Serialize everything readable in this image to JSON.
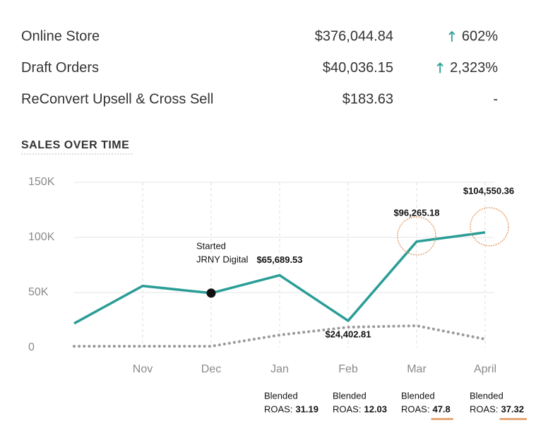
{
  "table": {
    "rows": [
      {
        "name": "Online Store",
        "amount": "$376,044.84",
        "direction": "up",
        "change": "602%"
      },
      {
        "name": "Draft Orders",
        "amount": "$40,036.15",
        "direction": "up",
        "change": "2,323%"
      },
      {
        "name": "ReConvert Upsell & Cross Sell",
        "amount": "$183.63",
        "direction": "none",
        "change": "-"
      }
    ]
  },
  "chart_data": {
    "type": "line",
    "title": "SALES OVER TIME",
    "categories": [
      null,
      "Nov",
      "Dec",
      "Jan",
      "Feb",
      "Mar",
      "April"
    ],
    "series": [
      {
        "color": "#2a9d96",
        "style": "solid",
        "values": [
          22000,
          56000,
          49500,
          65689.53,
          24402.81,
          96265.18,
          104550.36
        ],
        "value_labels": [
          null,
          null,
          null,
          "$65,689.53",
          "$24,402.81",
          "$96,265.18",
          "$104,550.36"
        ]
      },
      {
        "color": "#9b9b9b",
        "style": "dotted",
        "values": [
          1300,
          1300,
          1300,
          11500,
          18600,
          19900,
          7700
        ]
      }
    ],
    "ylim": [
      0,
      150000
    ],
    "yticks": [
      0,
      {
        "value": 50000,
        "label": "50K"
      },
      {
        "value": 100000,
        "label": "100K"
      },
      {
        "value": 150000,
        "label": "150K"
      }
    ],
    "grid": true,
    "annotation": {
      "lines": [
        "Started",
        "JRNY Digital"
      ],
      "category_index": 2
    },
    "roas": {
      "prefix": "Blended",
      "label": "ROAS:",
      "values": [
        null,
        null,
        null,
        31.19,
        12.03,
        47.8,
        37.32
      ]
    }
  }
}
